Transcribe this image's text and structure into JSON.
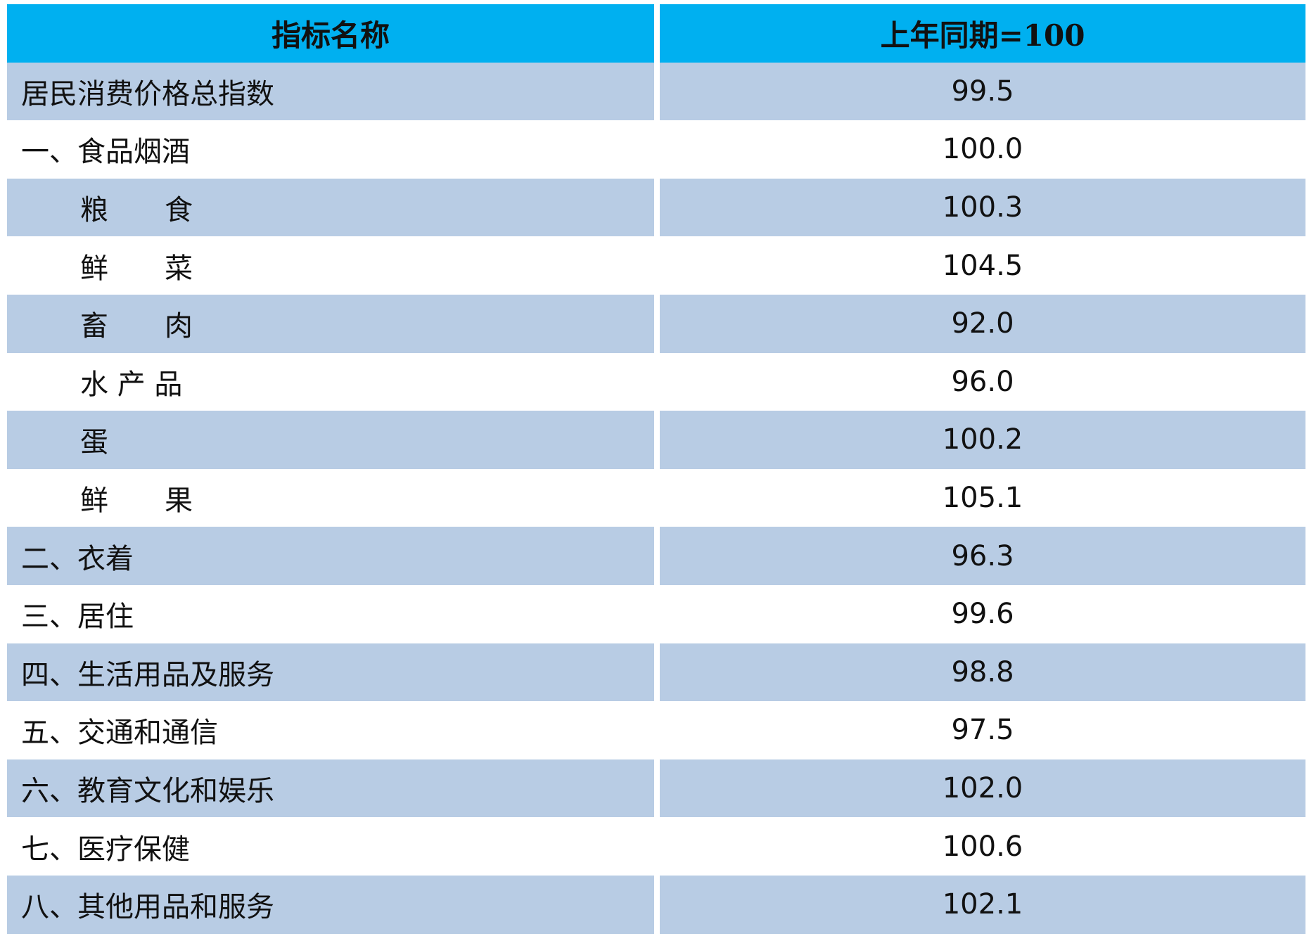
{
  "header": {
    "name_col": "指标名称",
    "value_col": "上年同期=100"
  },
  "rows": [
    {
      "name": "居民消费价格总指数",
      "value": "99.5",
      "indent": false
    },
    {
      "name": "一、食品烟酒",
      "value": "100.0",
      "indent": false
    },
    {
      "name": "粮　　食",
      "value": "100.3",
      "indent": true
    },
    {
      "name": "鲜　　菜",
      "value": "104.5",
      "indent": true
    },
    {
      "name": "畜　　肉",
      "value": "92.0",
      "indent": true
    },
    {
      "name": "水 产 品",
      "value": "96.0",
      "indent": true
    },
    {
      "name": "蛋",
      "value": "100.2",
      "indent": true
    },
    {
      "name": "鲜　　果",
      "value": "105.1",
      "indent": true
    },
    {
      "name": "二、衣着",
      "value": "96.3",
      "indent": false
    },
    {
      "name": "三、居住",
      "value": "99.6",
      "indent": false
    },
    {
      "name": "四、生活用品及服务",
      "value": "98.8",
      "indent": false
    },
    {
      "name": "五、交通和通信",
      "value": "97.5",
      "indent": false
    },
    {
      "name": "六、教育文化和娱乐",
      "value": "102.0",
      "indent": false
    },
    {
      "name": "七、医疗保健",
      "value": "100.6",
      "indent": false
    },
    {
      "name": "八、其他用品和服务",
      "value": "102.1",
      "indent": false
    }
  ],
  "colors": {
    "header_bg": "#00b0f0",
    "shaded_row_bg": "#b8cce4",
    "plain_row_bg": "#ffffff"
  }
}
